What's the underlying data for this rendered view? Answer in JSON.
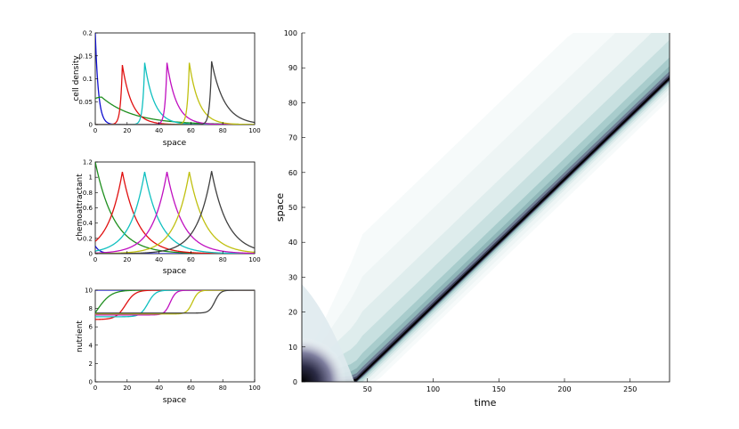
{
  "colors": {
    "series": [
      "#1010d0",
      "#1f8f1f",
      "#e01010",
      "#10c0c0",
      "#c010c0",
      "#c0c010",
      "#404040"
    ],
    "heatmap_low": "#ffffff",
    "heatmap_mid": "#8fbfbf",
    "heatmap_high": "#000000"
  },
  "chart_data": [
    {
      "type": "line",
      "ylabel": "cell density",
      "xlabel": "space",
      "xlim": [
        0,
        100
      ],
      "ylim": [
        0,
        0.2
      ],
      "xticks": [
        "0",
        "20",
        "40",
        "60",
        "80",
        "100"
      ],
      "yticks": [
        "0",
        "0.05",
        "0.1",
        "0.15",
        "0.2"
      ],
      "series": [
        {
          "kind": "decay",
          "start": 0,
          "peak": 0.2,
          "decay": 2.0
        },
        {
          "kind": "hump",
          "center": 4,
          "start": 0.045,
          "peak": 0.06,
          "rise": 6,
          "decay": 20
        },
        {
          "kind": "spike",
          "center": 17,
          "peak": 0.13,
          "rise": 1.2,
          "decay": 6
        },
        {
          "kind": "spike",
          "center": 31,
          "peak": 0.135,
          "rise": 1.2,
          "decay": 6
        },
        {
          "kind": "spike",
          "center": 45,
          "peak": 0.135,
          "rise": 1.2,
          "decay": 6
        },
        {
          "kind": "spike",
          "center": 59,
          "peak": 0.135,
          "rise": 1.2,
          "decay": 6
        },
        {
          "kind": "spike",
          "center": 73,
          "peak": 0.138,
          "rise": 1.2,
          "decay": 8
        }
      ]
    },
    {
      "type": "line",
      "ylabel": "chemoattractant",
      "xlabel": "space",
      "xlim": [
        0,
        100
      ],
      "ylim": [
        0,
        1.2
      ],
      "xticks": [
        "0",
        "20",
        "40",
        "60",
        "80",
        "100"
      ],
      "yticks": [
        "0",
        "0.2",
        "0.4",
        "0.6",
        "0.8",
        "1",
        "1.2"
      ],
      "series": [
        {
          "kind": "decay",
          "start": 0,
          "peak": 0.1,
          "decay": 3
        },
        {
          "kind": "hump",
          "center": 0,
          "start": 1.2,
          "peak": 1.2,
          "rise": 1,
          "decay": 12
        },
        {
          "kind": "spike",
          "center": 17,
          "peak": 1.07,
          "rise": 9,
          "decay": 10
        },
        {
          "kind": "spike",
          "center": 31,
          "peak": 1.07,
          "rise": 9,
          "decay": 10
        },
        {
          "kind": "spike",
          "center": 45,
          "peak": 1.07,
          "rise": 9,
          "decay": 10
        },
        {
          "kind": "spike",
          "center": 59,
          "peak": 1.07,
          "rise": 9,
          "decay": 10
        },
        {
          "kind": "spike",
          "center": 73,
          "peak": 1.08,
          "rise": 9,
          "decay": 10
        }
      ]
    },
    {
      "type": "line",
      "ylabel": "nutrient",
      "xlabel": "space",
      "xlim": [
        0,
        100
      ],
      "ylim": [
        0,
        10
      ],
      "xticks": [
        "0",
        "20",
        "40",
        "60",
        "80",
        "100"
      ],
      "yticks": [
        "0",
        "2",
        "4",
        "6",
        "8",
        "10"
      ],
      "series": [
        {
          "kind": "flat",
          "value": 10
        },
        {
          "kind": "step",
          "front": 0,
          "low": 6.0,
          "high": 10,
          "width": 7
        },
        {
          "kind": "step",
          "front": 17,
          "low": 6.8,
          "high": 10,
          "width": 5
        },
        {
          "kind": "step",
          "front": 31,
          "low": 7.1,
          "high": 10,
          "width": 4
        },
        {
          "kind": "step",
          "front": 45,
          "low": 7.3,
          "high": 10,
          "width": 3
        },
        {
          "kind": "step",
          "front": 59,
          "low": 7.4,
          "high": 10,
          "width": 3
        },
        {
          "kind": "step",
          "front": 73,
          "low": 7.5,
          "high": 10,
          "width": 3
        }
      ]
    },
    {
      "type": "heatmap",
      "xlabel": "time",
      "ylabel": "space",
      "xlim": [
        0,
        280
      ],
      "ylim": [
        0,
        100
      ],
      "xticks": [
        "50",
        "100",
        "150",
        "200",
        "250"
      ],
      "yticks": [
        "0",
        "10",
        "20",
        "30",
        "40",
        "50",
        "60",
        "70",
        "80",
        "90",
        "100"
      ],
      "front": {
        "t0": 40,
        "y0": 0,
        "t1": 280,
        "y1": 87
      },
      "initial_blob": {
        "t": 0,
        "y": 0
      }
    }
  ]
}
